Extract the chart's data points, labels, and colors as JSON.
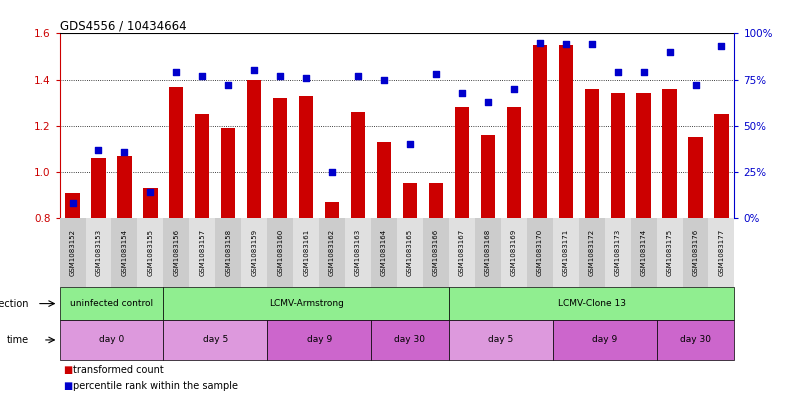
{
  "title": "GDS4556 / 10434664",
  "samples": [
    "GSM1083152",
    "GSM1083153",
    "GSM1083154",
    "GSM1083155",
    "GSM1083156",
    "GSM1083157",
    "GSM1083158",
    "GSM1083159",
    "GSM1083160",
    "GSM1083161",
    "GSM1083162",
    "GSM1083163",
    "GSM1083164",
    "GSM1083165",
    "GSM1083166",
    "GSM1083167",
    "GSM1083168",
    "GSM1083169",
    "GSM1083170",
    "GSM1083171",
    "GSM1083172",
    "GSM1083173",
    "GSM1083174",
    "GSM1083175",
    "GSM1083176",
    "GSM1083177"
  ],
  "bar_values": [
    0.91,
    1.06,
    1.07,
    0.93,
    1.37,
    1.25,
    1.19,
    1.4,
    1.32,
    1.33,
    0.87,
    1.26,
    1.13,
    0.95,
    0.95,
    1.28,
    1.16,
    1.28,
    1.55,
    1.55,
    1.36,
    1.34,
    1.34,
    1.36,
    1.15,
    1.25
  ],
  "percentile_values": [
    8,
    37,
    36,
    14,
    79,
    77,
    72,
    80,
    77,
    76,
    25,
    77,
    75,
    40,
    78,
    68,
    63,
    70,
    95,
    94,
    94,
    79,
    79,
    90,
    72,
    93
  ],
  "bar_color": "#CC0000",
  "dot_color": "#0000CC",
  "ylim_left": [
    0.8,
    1.6
  ],
  "ylim_right": [
    0,
    100
  ],
  "yticks_left": [
    0.8,
    1.0,
    1.2,
    1.4,
    1.6
  ],
  "yticks_right": [
    0,
    25,
    50,
    75,
    100
  ],
  "ytick_labels_right": [
    "0%",
    "25%",
    "50%",
    "75%",
    "100%"
  ],
  "inf_groups": [
    {
      "label": "uninfected control",
      "start": 0,
      "end": 3
    },
    {
      "label": "LCMV-Armstrong",
      "start": 4,
      "end": 14
    },
    {
      "label": "LCMV-Clone 13",
      "start": 15,
      "end": 25
    }
  ],
  "time_groups": [
    {
      "label": "day 0",
      "start": 0,
      "end": 3,
      "color": "#DD99DD"
    },
    {
      "label": "day 5",
      "start": 4,
      "end": 7,
      "color": "#DD99DD"
    },
    {
      "label": "day 9",
      "start": 8,
      "end": 11,
      "color": "#CC66CC"
    },
    {
      "label": "day 30",
      "start": 12,
      "end": 14,
      "color": "#CC66CC"
    },
    {
      "label": "day 5",
      "start": 15,
      "end": 18,
      "color": "#DD99DD"
    },
    {
      "label": "day 9",
      "start": 19,
      "end": 22,
      "color": "#CC66CC"
    },
    {
      "label": "day 30",
      "start": 23,
      "end": 25,
      "color": "#CC66CC"
    }
  ],
  "background_color": "#FFFFFF",
  "tick_color_left": "#CC0000",
  "tick_color_right": "#0000CC",
  "inf_color": "#90EE90"
}
